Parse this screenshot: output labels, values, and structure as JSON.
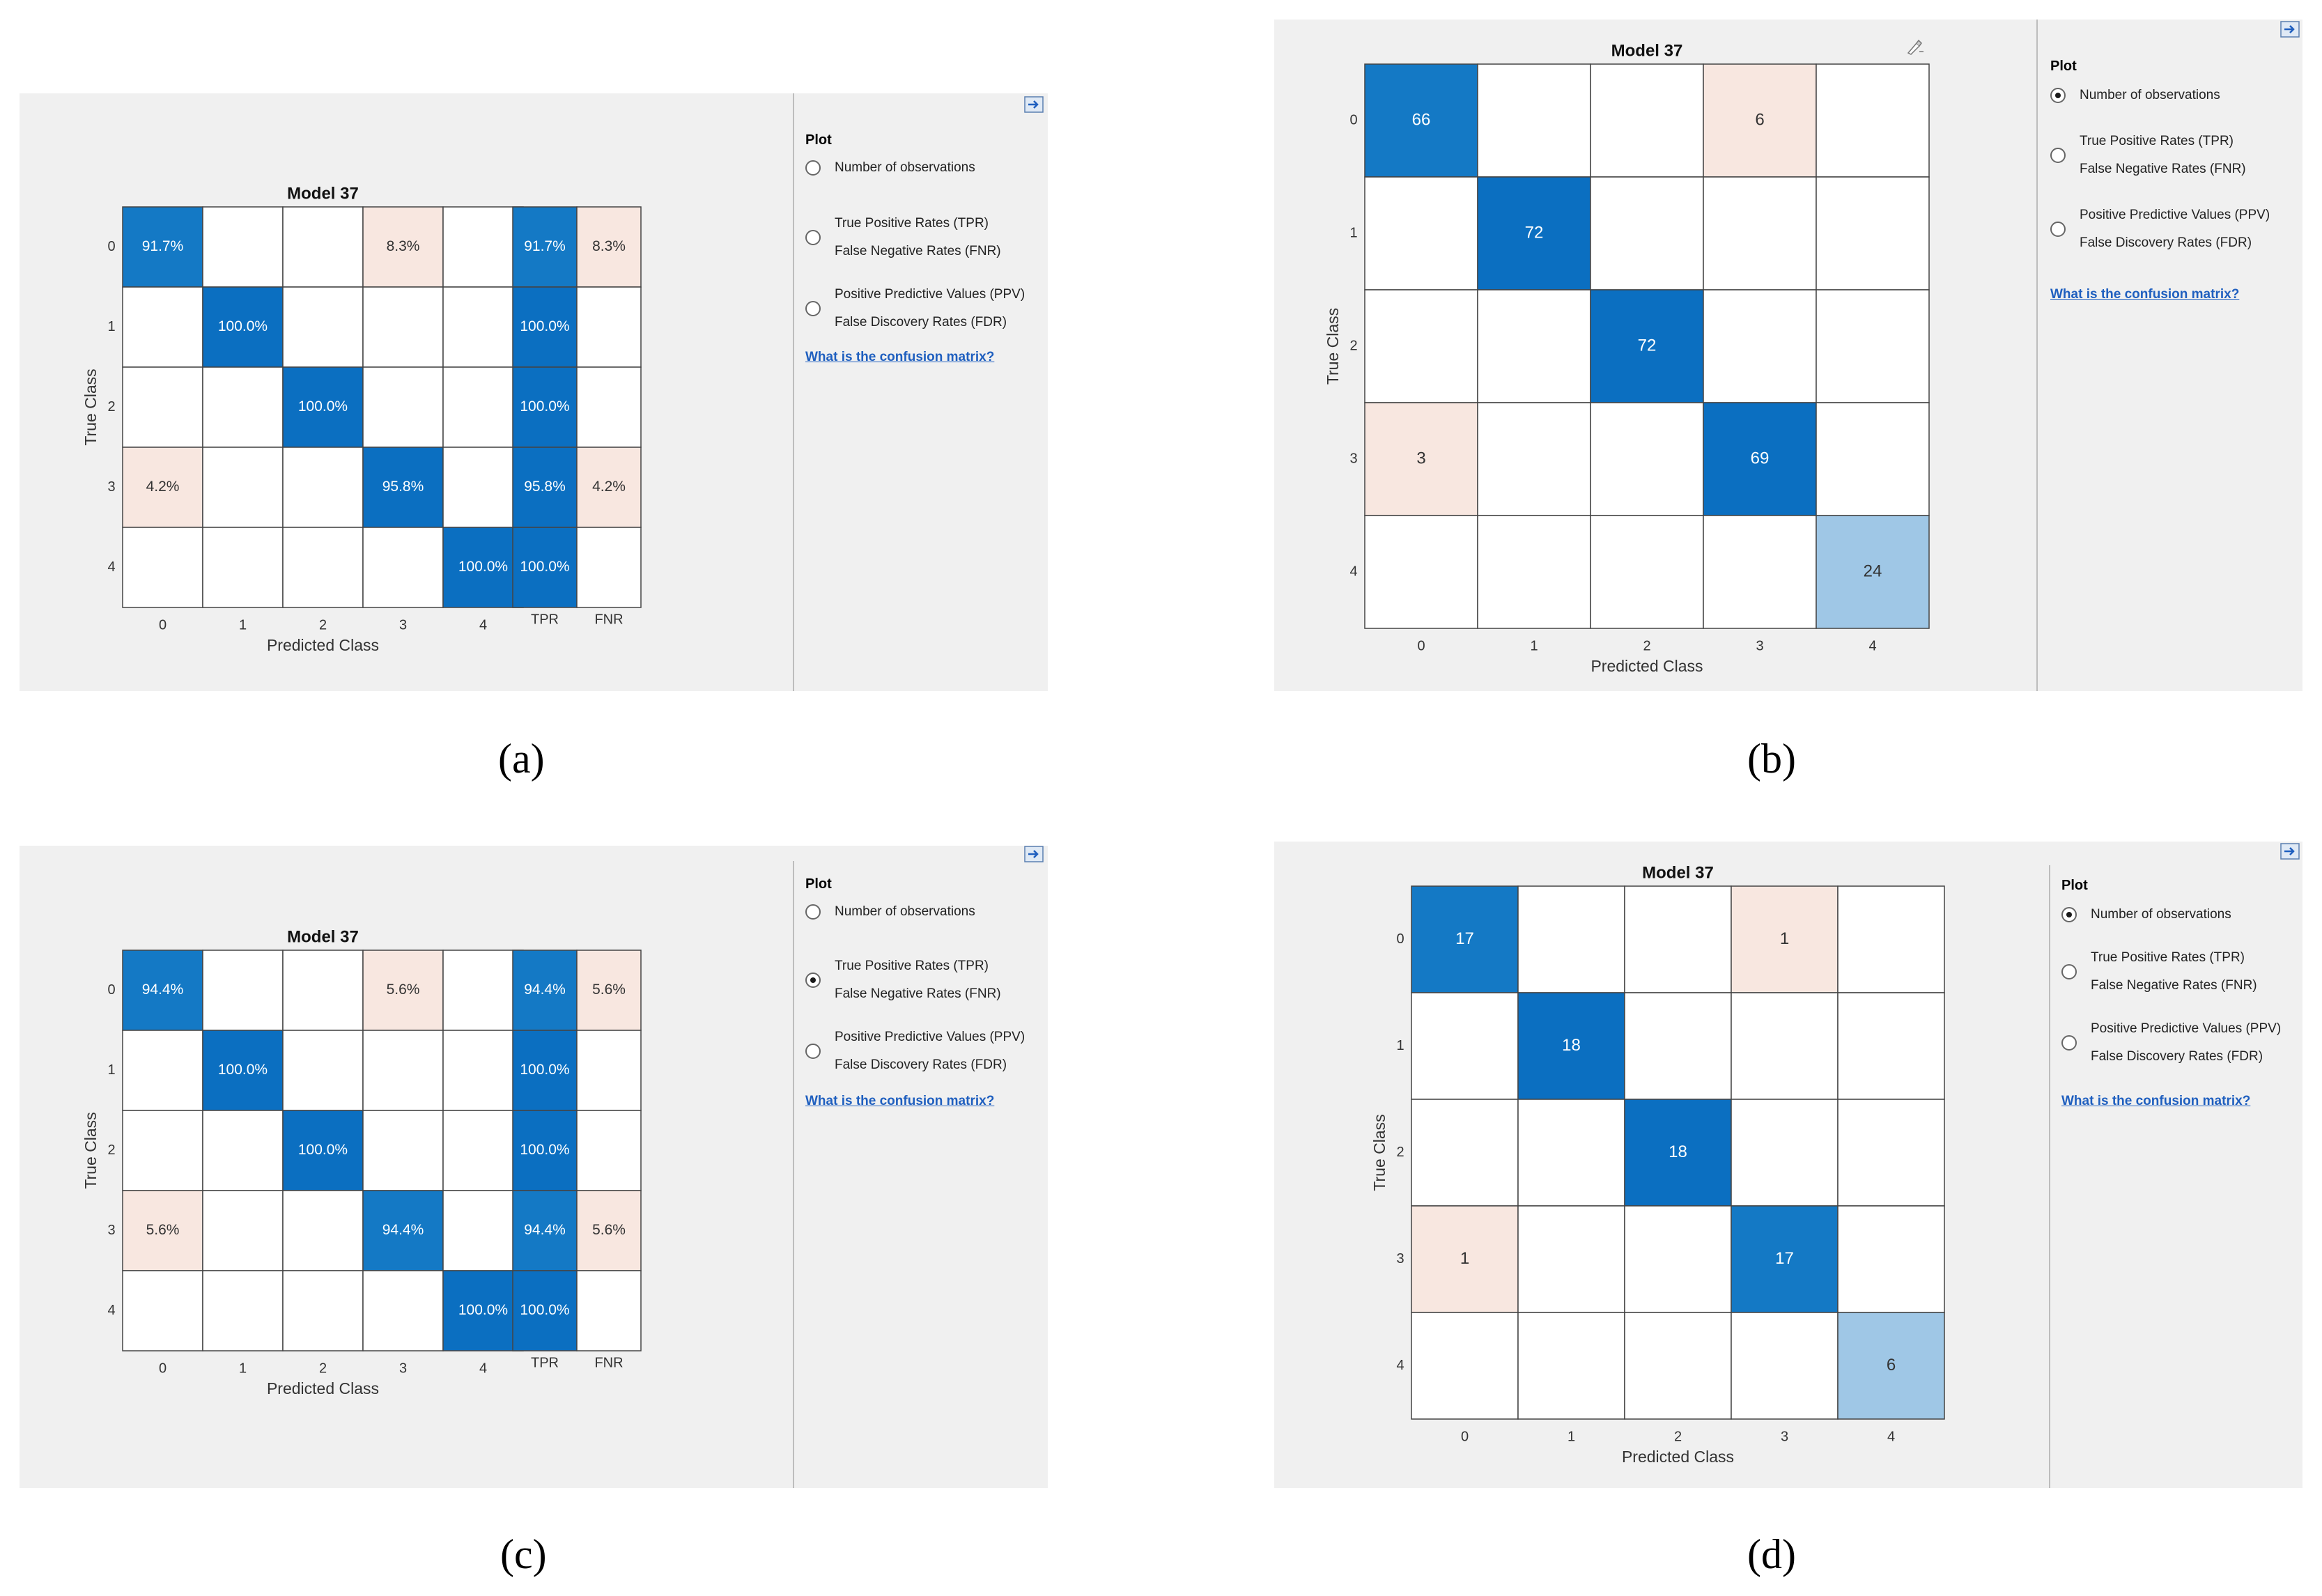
{
  "panels": [
    {
      "id": "a",
      "caption": "(a)",
      "chart_data": {
        "type": "heatmap",
        "title": "Model 37",
        "xlabel": "Predicted Class",
        "ylabel": "True Class",
        "classes": [
          "0",
          "1",
          "2",
          "3",
          "4"
        ],
        "cells": [
          [
            "91.7%",
            "",
            "",
            "8.3%",
            ""
          ],
          [
            "",
            "100.0%",
            "",
            "",
            ""
          ],
          [
            "",
            "",
            "100.0%",
            "",
            ""
          ],
          [
            "4.2%",
            "",
            "",
            "95.8%",
            ""
          ],
          [
            "",
            "",
            "",
            "",
            "100.0%"
          ]
        ],
        "values": [
          [
            91.7,
            0,
            0,
            8.3,
            0
          ],
          [
            0,
            100,
            0,
            0,
            0
          ],
          [
            0,
            0,
            100,
            0,
            0
          ],
          [
            4.2,
            0,
            0,
            95.8,
            0
          ],
          [
            0,
            0,
            0,
            0,
            100
          ]
        ],
        "summary_columns": [
          "TPR",
          "FNR"
        ],
        "summary_cells": [
          [
            "91.7%",
            "8.3%"
          ],
          [
            "100.0%",
            ""
          ],
          [
            "100.0%",
            ""
          ],
          [
            "95.8%",
            "4.2%"
          ],
          [
            "100.0%",
            ""
          ]
        ],
        "summary_values": [
          [
            91.7,
            8.3
          ],
          [
            100,
            0
          ],
          [
            100,
            0
          ],
          [
            95.8,
            4.2
          ],
          [
            100,
            0
          ]
        ]
      },
      "options_panel": {
        "heading": "Plot",
        "options": [
          {
            "line1": "Number of observations",
            "line2": "",
            "checked": false
          },
          {
            "line1": "True Positive Rates (TPR)",
            "line2": "False Negative Rates (FNR)",
            "checked": true
          },
          {
            "line1": "Positive Predictive Values (PPV)",
            "line2": "False Discovery Rates (FDR)",
            "checked": false
          }
        ],
        "link": "What is the confusion matrix?"
      }
    },
    {
      "id": "b",
      "caption": "(b)",
      "chart_data": {
        "type": "heatmap",
        "title": "Model 37",
        "xlabel": "Predicted Class",
        "ylabel": "True Class",
        "classes": [
          "0",
          "1",
          "2",
          "3",
          "4"
        ],
        "cells": [
          [
            "66",
            "",
            "",
            "6",
            ""
          ],
          [
            "",
            "72",
            "",
            "",
            ""
          ],
          [
            "",
            "",
            "72",
            "",
            ""
          ],
          [
            "3",
            "",
            "",
            "69",
            ""
          ],
          [
            "",
            "",
            "",
            "",
            "24"
          ]
        ],
        "values": [
          [
            66,
            0,
            0,
            6,
            0
          ],
          [
            0,
            72,
            0,
            0,
            0
          ],
          [
            0,
            0,
            72,
            0,
            0
          ],
          [
            3,
            0,
            0,
            69,
            0
          ],
          [
            0,
            0,
            0,
            0,
            24
          ]
        ]
      },
      "options_panel": {
        "heading": "Plot",
        "options": [
          {
            "line1": "Number of observations",
            "line2": "",
            "checked": true
          },
          {
            "line1": "True Positive Rates (TPR)",
            "line2": "False Negative Rates (FNR)",
            "checked": false
          },
          {
            "line1": "Positive Predictive Values (PPV)",
            "line2": "False Discovery Rates (FDR)",
            "checked": false
          }
        ],
        "link": "What is the confusion matrix?"
      }
    },
    {
      "id": "c",
      "caption": "(c)",
      "chart_data": {
        "type": "heatmap",
        "title": "Model 37",
        "xlabel": "Predicted Class",
        "ylabel": "True Class",
        "classes": [
          "0",
          "1",
          "2",
          "3",
          "4"
        ],
        "cells": [
          [
            "94.4%",
            "",
            "",
            "5.6%",
            ""
          ],
          [
            "",
            "100.0%",
            "",
            "",
            ""
          ],
          [
            "",
            "",
            "100.0%",
            "",
            ""
          ],
          [
            "5.6%",
            "",
            "",
            "94.4%",
            ""
          ],
          [
            "",
            "",
            "",
            "",
            "100.0%"
          ]
        ],
        "values": [
          [
            94.4,
            0,
            0,
            5.6,
            0
          ],
          [
            0,
            100,
            0,
            0,
            0
          ],
          [
            0,
            0,
            100,
            0,
            0
          ],
          [
            5.6,
            0,
            0,
            94.4,
            0
          ],
          [
            0,
            0,
            0,
            0,
            100
          ]
        ],
        "summary_columns": [
          "TPR",
          "FNR"
        ],
        "summary_cells": [
          [
            "94.4%",
            "5.6%"
          ],
          [
            "100.0%",
            ""
          ],
          [
            "100.0%",
            ""
          ],
          [
            "94.4%",
            "5.6%"
          ],
          [
            "100.0%",
            ""
          ]
        ],
        "summary_values": [
          [
            94.4,
            5.6
          ],
          [
            100,
            0
          ],
          [
            100,
            0
          ],
          [
            94.4,
            5.6
          ],
          [
            100,
            0
          ]
        ]
      },
      "options_panel": {
        "heading": "Plot",
        "options": [
          {
            "line1": "Number of observations",
            "line2": "",
            "checked": false
          },
          {
            "line1": "True Positive Rates (TPR)",
            "line2": "False Negative Rates (FNR)",
            "checked": true
          },
          {
            "line1": "Positive Predictive Values (PPV)",
            "line2": "False Discovery Rates (FDR)",
            "checked": false
          }
        ],
        "link": "What is the confusion matrix?"
      }
    },
    {
      "id": "d",
      "caption": "(d)",
      "chart_data": {
        "type": "heatmap",
        "title": "Model 37",
        "xlabel": "Predicted Class",
        "ylabel": "True Class",
        "classes": [
          "0",
          "1",
          "2",
          "3",
          "4"
        ],
        "cells": [
          [
            "17",
            "",
            "",
            "1",
            ""
          ],
          [
            "",
            "18",
            "",
            "",
            ""
          ],
          [
            "",
            "",
            "18",
            "",
            ""
          ],
          [
            "1",
            "",
            "",
            "17",
            ""
          ],
          [
            "",
            "",
            "",
            "",
            "6"
          ]
        ],
        "values": [
          [
            17,
            0,
            0,
            1,
            0
          ],
          [
            0,
            18,
            0,
            0,
            0
          ],
          [
            0,
            0,
            18,
            0,
            0
          ],
          [
            1,
            0,
            0,
            17,
            0
          ],
          [
            0,
            0,
            0,
            0,
            6
          ]
        ]
      },
      "options_panel": {
        "heading": "Plot",
        "options": [
          {
            "line1": "Number of observations",
            "line2": "",
            "checked": true
          },
          {
            "line1": "True Positive Rates (TPR)",
            "line2": "False Negative Rates (FNR)",
            "checked": false
          },
          {
            "line1": "Positive Predictive Values (PPV)",
            "line2": "False Discovery Rates (FDR)",
            "checked": false
          }
        ],
        "link": "What is the confusion matrix?"
      }
    }
  ],
  "colors": {
    "strong": "#0b6fc1",
    "medium": "#1479c5",
    "light": "#9fc7e6",
    "error": "#f8e7e0",
    "background": "#f0f0f0",
    "link": "#1f5fbf"
  }
}
